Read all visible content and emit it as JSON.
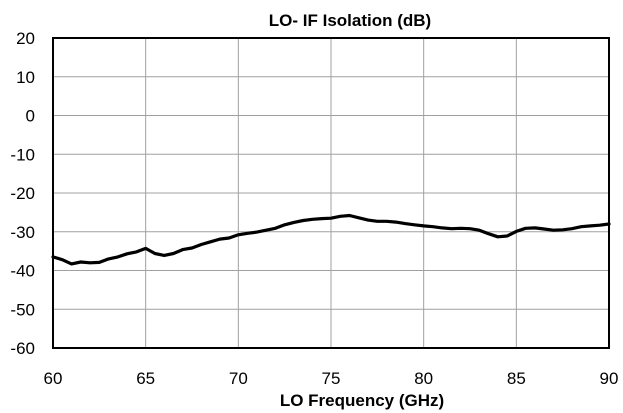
{
  "chart_data": {
    "type": "line",
    "title": "LO- IF Isolation (dB)",
    "xlabel": "LO Frequency (GHz)",
    "ylabel": "",
    "xlim": [
      60,
      90
    ],
    "ylim": [
      -60,
      20
    ],
    "xticks": [
      60,
      65,
      70,
      75,
      80,
      85,
      90
    ],
    "yticks": [
      20,
      10,
      0,
      -10,
      -20,
      -30,
      -40,
      -50,
      -60
    ],
    "xtick_labels": [
      "60",
      "65",
      "70",
      "75",
      "80",
      "85",
      "90"
    ],
    "ytick_labels": [
      "20",
      "10",
      "0",
      "-10",
      "-20",
      "-30",
      "-40",
      "-50",
      "-60"
    ],
    "grid": true,
    "legend": "none",
    "series": [
      {
        "color": "#000000",
        "x": [
          60,
          60.5,
          61,
          61.5,
          62,
          62.5,
          63,
          63.5,
          64,
          64.5,
          65,
          65.5,
          66,
          66.5,
          67,
          67.5,
          68,
          68.5,
          69,
          69.5,
          70,
          70.5,
          71,
          71.5,
          72,
          72.5,
          73,
          73.5,
          74,
          74.5,
          75,
          75.5,
          76,
          76.5,
          77,
          77.5,
          78,
          78.5,
          79,
          79.5,
          80,
          80.5,
          81,
          81.5,
          82,
          82.5,
          83,
          83.5,
          84,
          84.5,
          85,
          85.5,
          86,
          86.5,
          87,
          87.5,
          88,
          88.5,
          89,
          89.5,
          90
        ],
        "y": [
          -36.5,
          -37.2,
          -38.3,
          -37.8,
          -38.0,
          -37.9,
          -37.0,
          -36.5,
          -35.7,
          -35.2,
          -34.3,
          -35.6,
          -36.1,
          -35.6,
          -34.6,
          -34.2,
          -33.3,
          -32.6,
          -31.9,
          -31.6,
          -30.8,
          -30.4,
          -30.1,
          -29.6,
          -29.1,
          -28.2,
          -27.6,
          -27.1,
          -26.8,
          -26.6,
          -26.5,
          -26.0,
          -25.8,
          -26.4,
          -27.0,
          -27.3,
          -27.3,
          -27.5,
          -27.9,
          -28.2,
          -28.5,
          -28.7,
          -29.0,
          -29.2,
          -29.1,
          -29.2,
          -29.6,
          -30.5,
          -31.3,
          -31.1,
          -29.9,
          -29.1,
          -29.0,
          -29.3,
          -29.6,
          -29.5,
          -29.2,
          -28.7,
          -28.5,
          -28.3,
          -28.0
        ]
      }
    ]
  }
}
